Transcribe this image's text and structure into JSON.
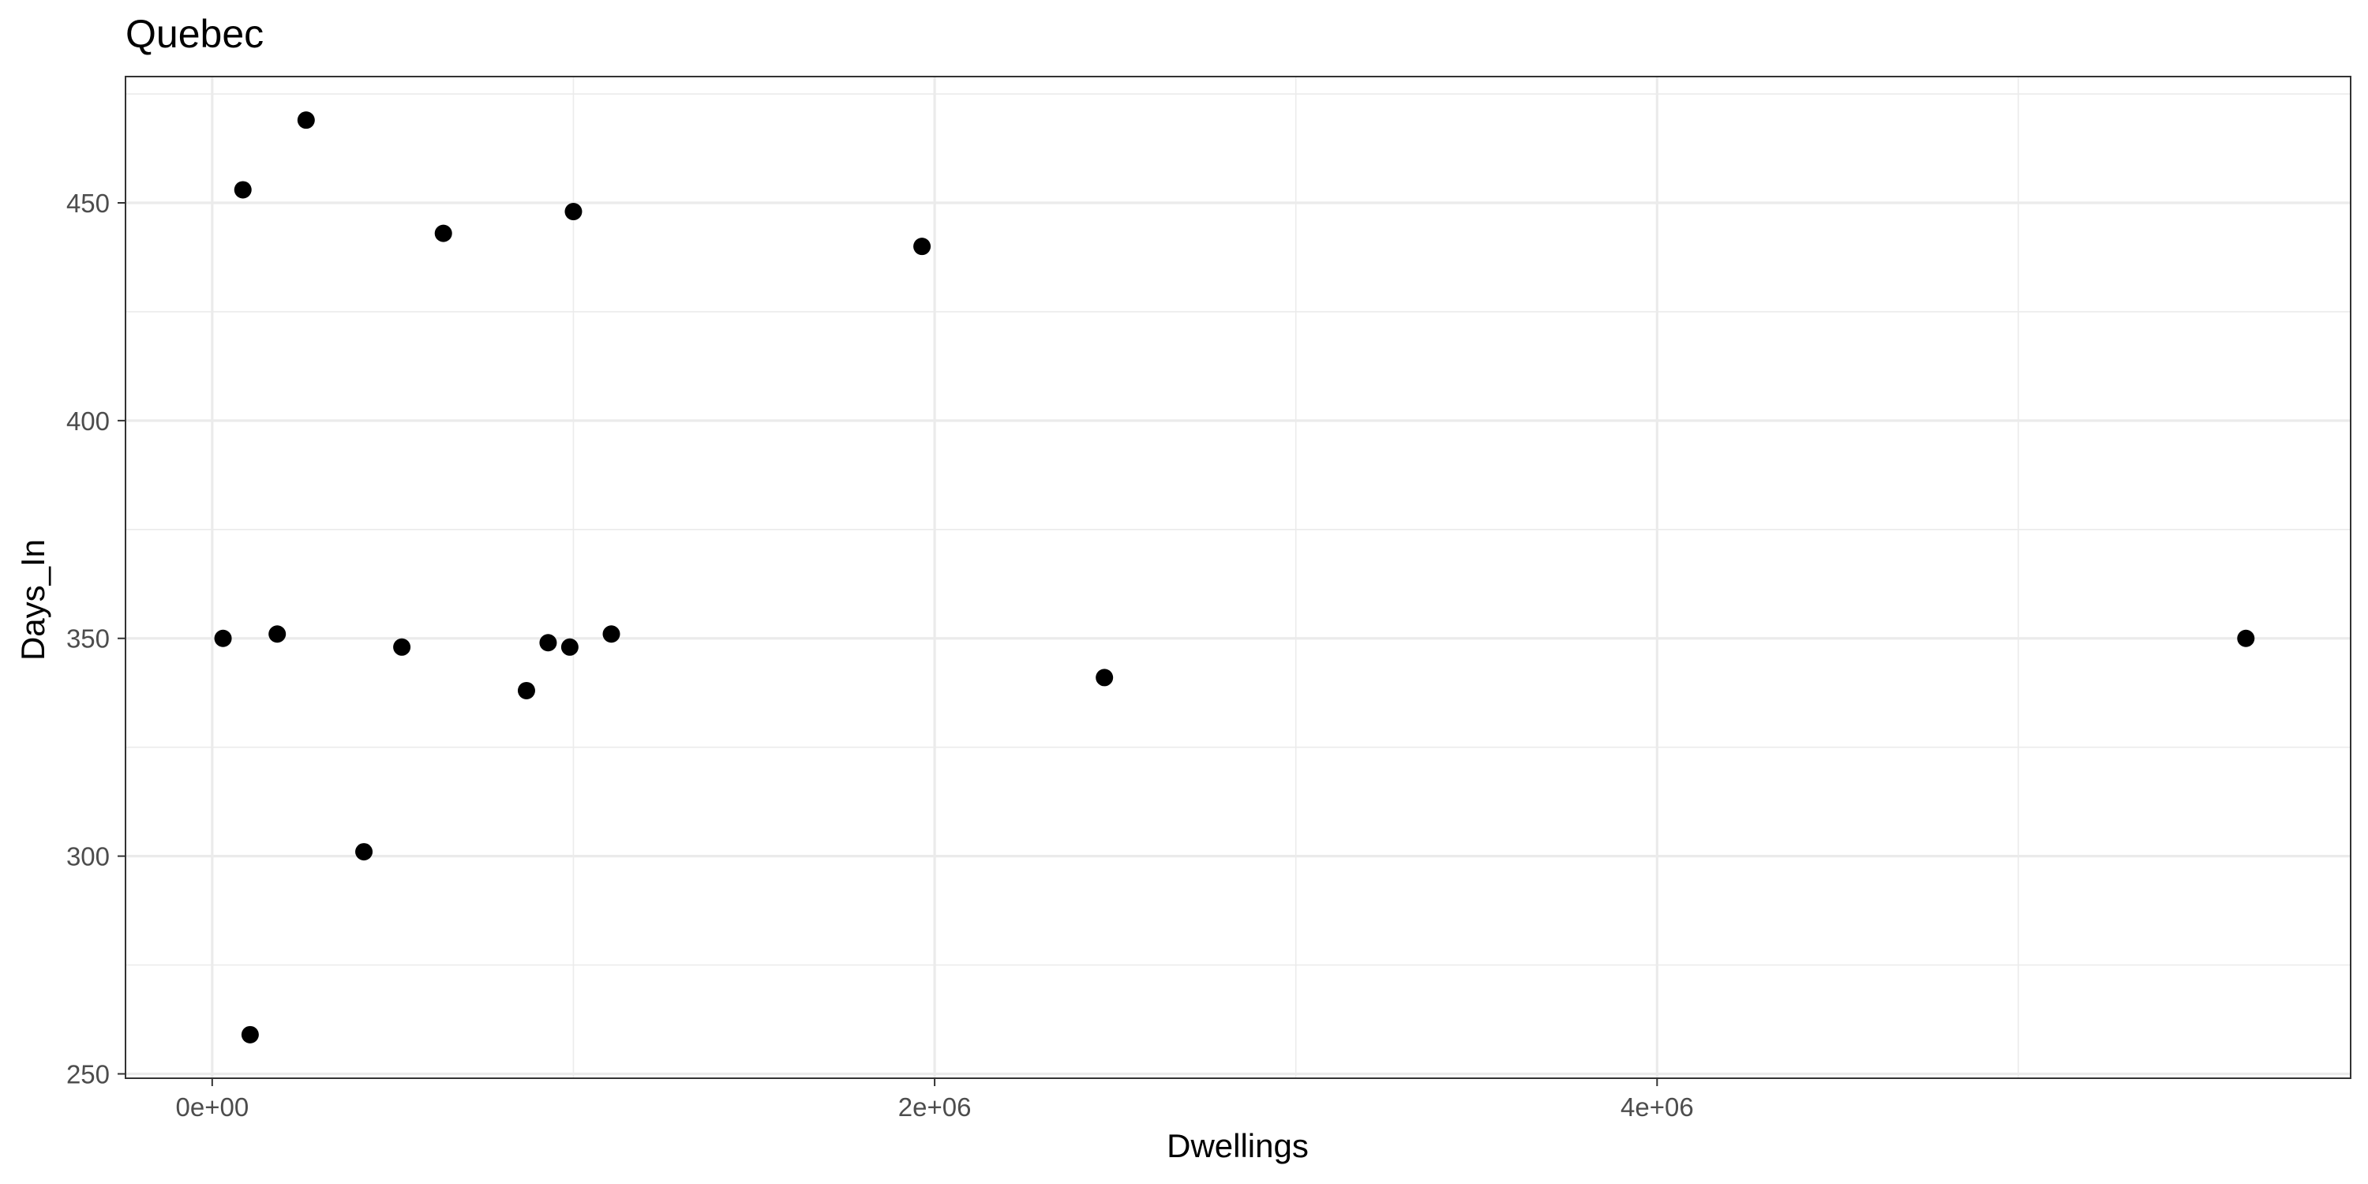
{
  "chart_data": {
    "type": "scatter",
    "title": "Quebec",
    "xlabel": "Dwellings",
    "ylabel": "Days_In",
    "xlim": [
      -240000,
      5920000
    ],
    "ylim": [
      249,
      479
    ],
    "x_ticks": [
      0,
      2000000,
      4000000
    ],
    "x_tick_labels": [
      "0e+00",
      "2e+06",
      "4e+06"
    ],
    "x_minor_ticks": [
      1000000,
      3000000,
      5000000
    ],
    "y_ticks": [
      250,
      300,
      350,
      400,
      450
    ],
    "y_tick_labels": [
      "250",
      "300",
      "350",
      "400",
      "450"
    ],
    "y_minor_ticks": [
      275,
      325,
      375,
      425,
      475
    ],
    "grid": true,
    "legend": "none",
    "points": [
      {
        "x": 30000,
        "y": 350
      },
      {
        "x": 85000,
        "y": 453
      },
      {
        "x": 105000,
        "y": 259
      },
      {
        "x": 180000,
        "y": 351
      },
      {
        "x": 260000,
        "y": 469
      },
      {
        "x": 420000,
        "y": 301
      },
      {
        "x": 525000,
        "y": 348
      },
      {
        "x": 640000,
        "y": 443
      },
      {
        "x": 870000,
        "y": 338
      },
      {
        "x": 930000,
        "y": 349
      },
      {
        "x": 990000,
        "y": 348
      },
      {
        "x": 1000000,
        "y": 448
      },
      {
        "x": 1105000,
        "y": 351
      },
      {
        "x": 1965000,
        "y": 440
      },
      {
        "x": 2470000,
        "y": 341
      },
      {
        "x": 5630000,
        "y": 350
      }
    ]
  },
  "colors": {
    "point": "#000000",
    "grid": "#ebebeb",
    "panel_border": "#333333",
    "tick_label": "#4d4d4d"
  }
}
